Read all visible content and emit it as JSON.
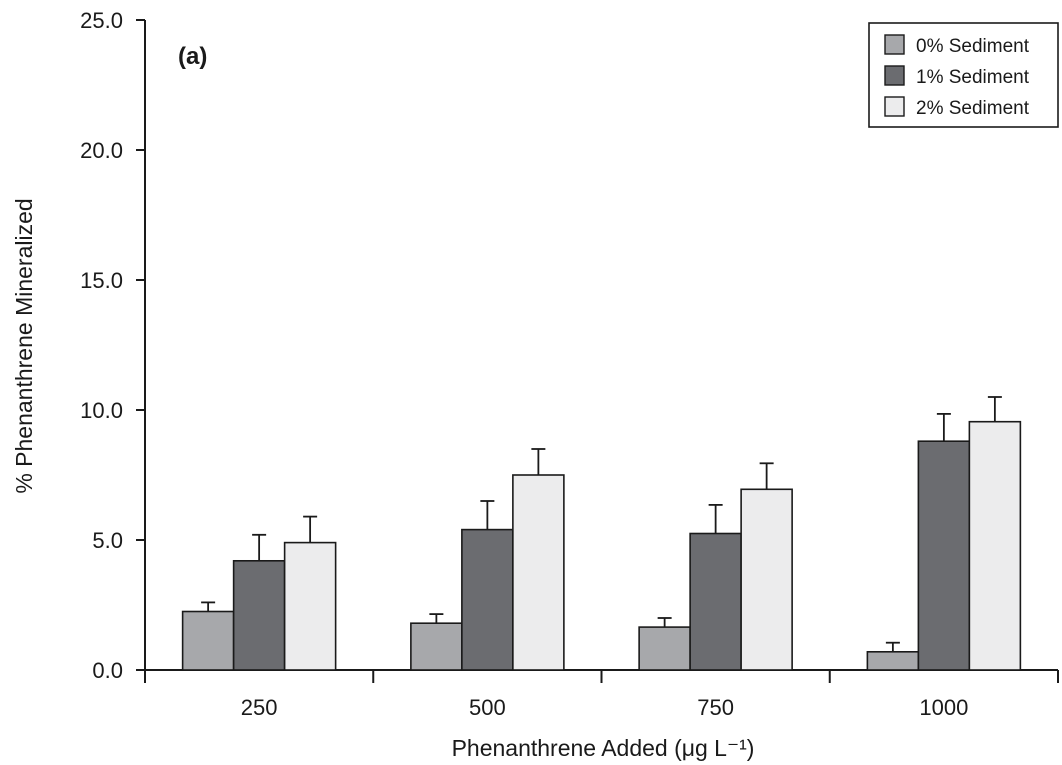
{
  "chart_data": {
    "type": "bar",
    "panel_label": "(a)",
    "xlabel": "Phenanthrene Added  (μg L⁻¹)",
    "ylabel": "% Phenanthrene Mineralized",
    "categories": [
      "250",
      "500",
      "750",
      "1000"
    ],
    "ylim": [
      0,
      25
    ],
    "yticks": [
      "0.0",
      "5.0",
      "10.0",
      "15.0",
      "20.0",
      "25.0"
    ],
    "grid": false,
    "legend_position": "top-right",
    "series": [
      {
        "name": "0% Sediment",
        "color": "#a7a8ab",
        "values": [
          2.25,
          1.8,
          1.65,
          0.7
        ],
        "errors": [
          0.35,
          0.35,
          0.35,
          0.35
        ]
      },
      {
        "name": "1% Sediment",
        "color": "#6b6c70",
        "values": [
          4.2,
          5.4,
          5.25,
          8.8
        ],
        "errors": [
          1.0,
          1.1,
          1.1,
          1.05
        ]
      },
      {
        "name": "2% Sediment",
        "color": "#ececed",
        "values": [
          4.9,
          7.5,
          6.95,
          9.55
        ],
        "errors": [
          1.0,
          1.0,
          1.0,
          0.95
        ]
      }
    ]
  }
}
